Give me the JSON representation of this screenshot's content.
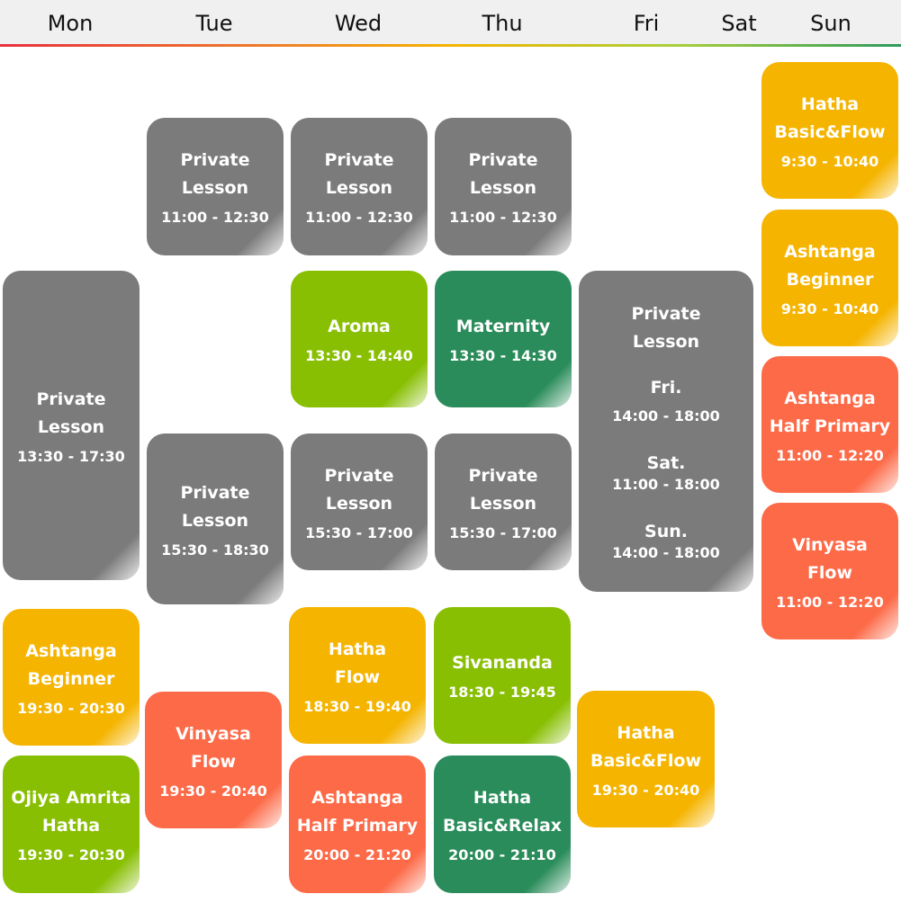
{
  "days": [
    "Mon",
    "Tue",
    "Wed",
    "Thu",
    "Fri",
    "Sat",
    "Sun"
  ],
  "classes": {
    "tue_private_am": {
      "title1": "Private",
      "title2": "Lesson",
      "time": "11:00 - 12:30"
    },
    "wed_private_am": {
      "title1": "Private",
      "title2": "Lesson",
      "time": "11:00 - 12:30"
    },
    "thu_private_am": {
      "title1": "Private",
      "title2": "Lesson",
      "time": "11:00 - 12:30"
    },
    "sun_hatha_bf": {
      "title1": "Hatha",
      "title2": "Basic&Flow",
      "time": "9:30 - 10:40"
    },
    "sun_ashtanga_beg": {
      "title1": "Ashtanga",
      "title2": "Beginner",
      "time": "9:30 - 10:40"
    },
    "sun_ashtanga_hp": {
      "title1": "Ashtanga",
      "title2": "Half Primary",
      "time": "11:00 - 12:20"
    },
    "sun_vinyasa": {
      "title1": "Vinyasa",
      "title2": "Flow",
      "time": "11:00 - 12:20"
    },
    "mon_private": {
      "title1": "Private",
      "title2": "Lesson",
      "time": "13:30 - 17:30"
    },
    "wed_aroma": {
      "title1": "Aroma",
      "time": "13:30 - 14:40"
    },
    "thu_maternity": {
      "title1": "Maternity",
      "time": "13:30 - 14:30"
    },
    "fri_private": {
      "title1": "Private",
      "title2": "Lesson",
      "fri_label": "Fri.",
      "fri_time": "14:00 - 18:00",
      "sat_label": "Sat.",
      "sat_time": "11:00 - 18:00",
      "sun_label": "Sun.",
      "sun_time": "14:00 - 18:00"
    },
    "tue_private_pm": {
      "title1": "Private",
      "title2": "Lesson",
      "time": "15:30 - 18:30"
    },
    "wed_private_pm": {
      "title1": "Private",
      "title2": "Lesson",
      "time": "15:30 - 17:00"
    },
    "thu_private_pm": {
      "title1": "Private",
      "title2": "Lesson",
      "time": "15:30 - 17:00"
    },
    "mon_ashtanga_beg": {
      "title1": "Ashtanga",
      "title2": "Beginner",
      "time": "19:30 - 20:30"
    },
    "wed_hatha_flow": {
      "title1": "Hatha",
      "title2": "Flow",
      "time": "18:30 - 19:40"
    },
    "thu_sivananda": {
      "title1": "Sivananda",
      "time": "18:30 - 19:45"
    },
    "tue_vinyasa": {
      "title1": "Vinyasa",
      "title2": "Flow",
      "time": "19:30 - 20:40"
    },
    "fri_hatha_bf": {
      "title1": "Hatha",
      "title2": "Basic&Flow",
      "time": "19:30 - 20:40"
    },
    "mon_ojiya": {
      "title1": "Ojiya Amrita",
      "title2": "Hatha",
      "time": "19:30 - 20:30"
    },
    "wed_ashtanga_hp": {
      "title1": "Ashtanga",
      "title2": "Half Primary",
      "time": "20:00 - 21:20"
    },
    "thu_hatha_br": {
      "title1": "Hatha",
      "title2": "Basic&Relax",
      "time": "20:00 - 21:10"
    }
  },
  "colors": {
    "gray": "#7b7b7b",
    "orange": "#f5b400",
    "red": "#fd6a48",
    "lime": "#88bf03",
    "teal": "#2a8c5a"
  }
}
